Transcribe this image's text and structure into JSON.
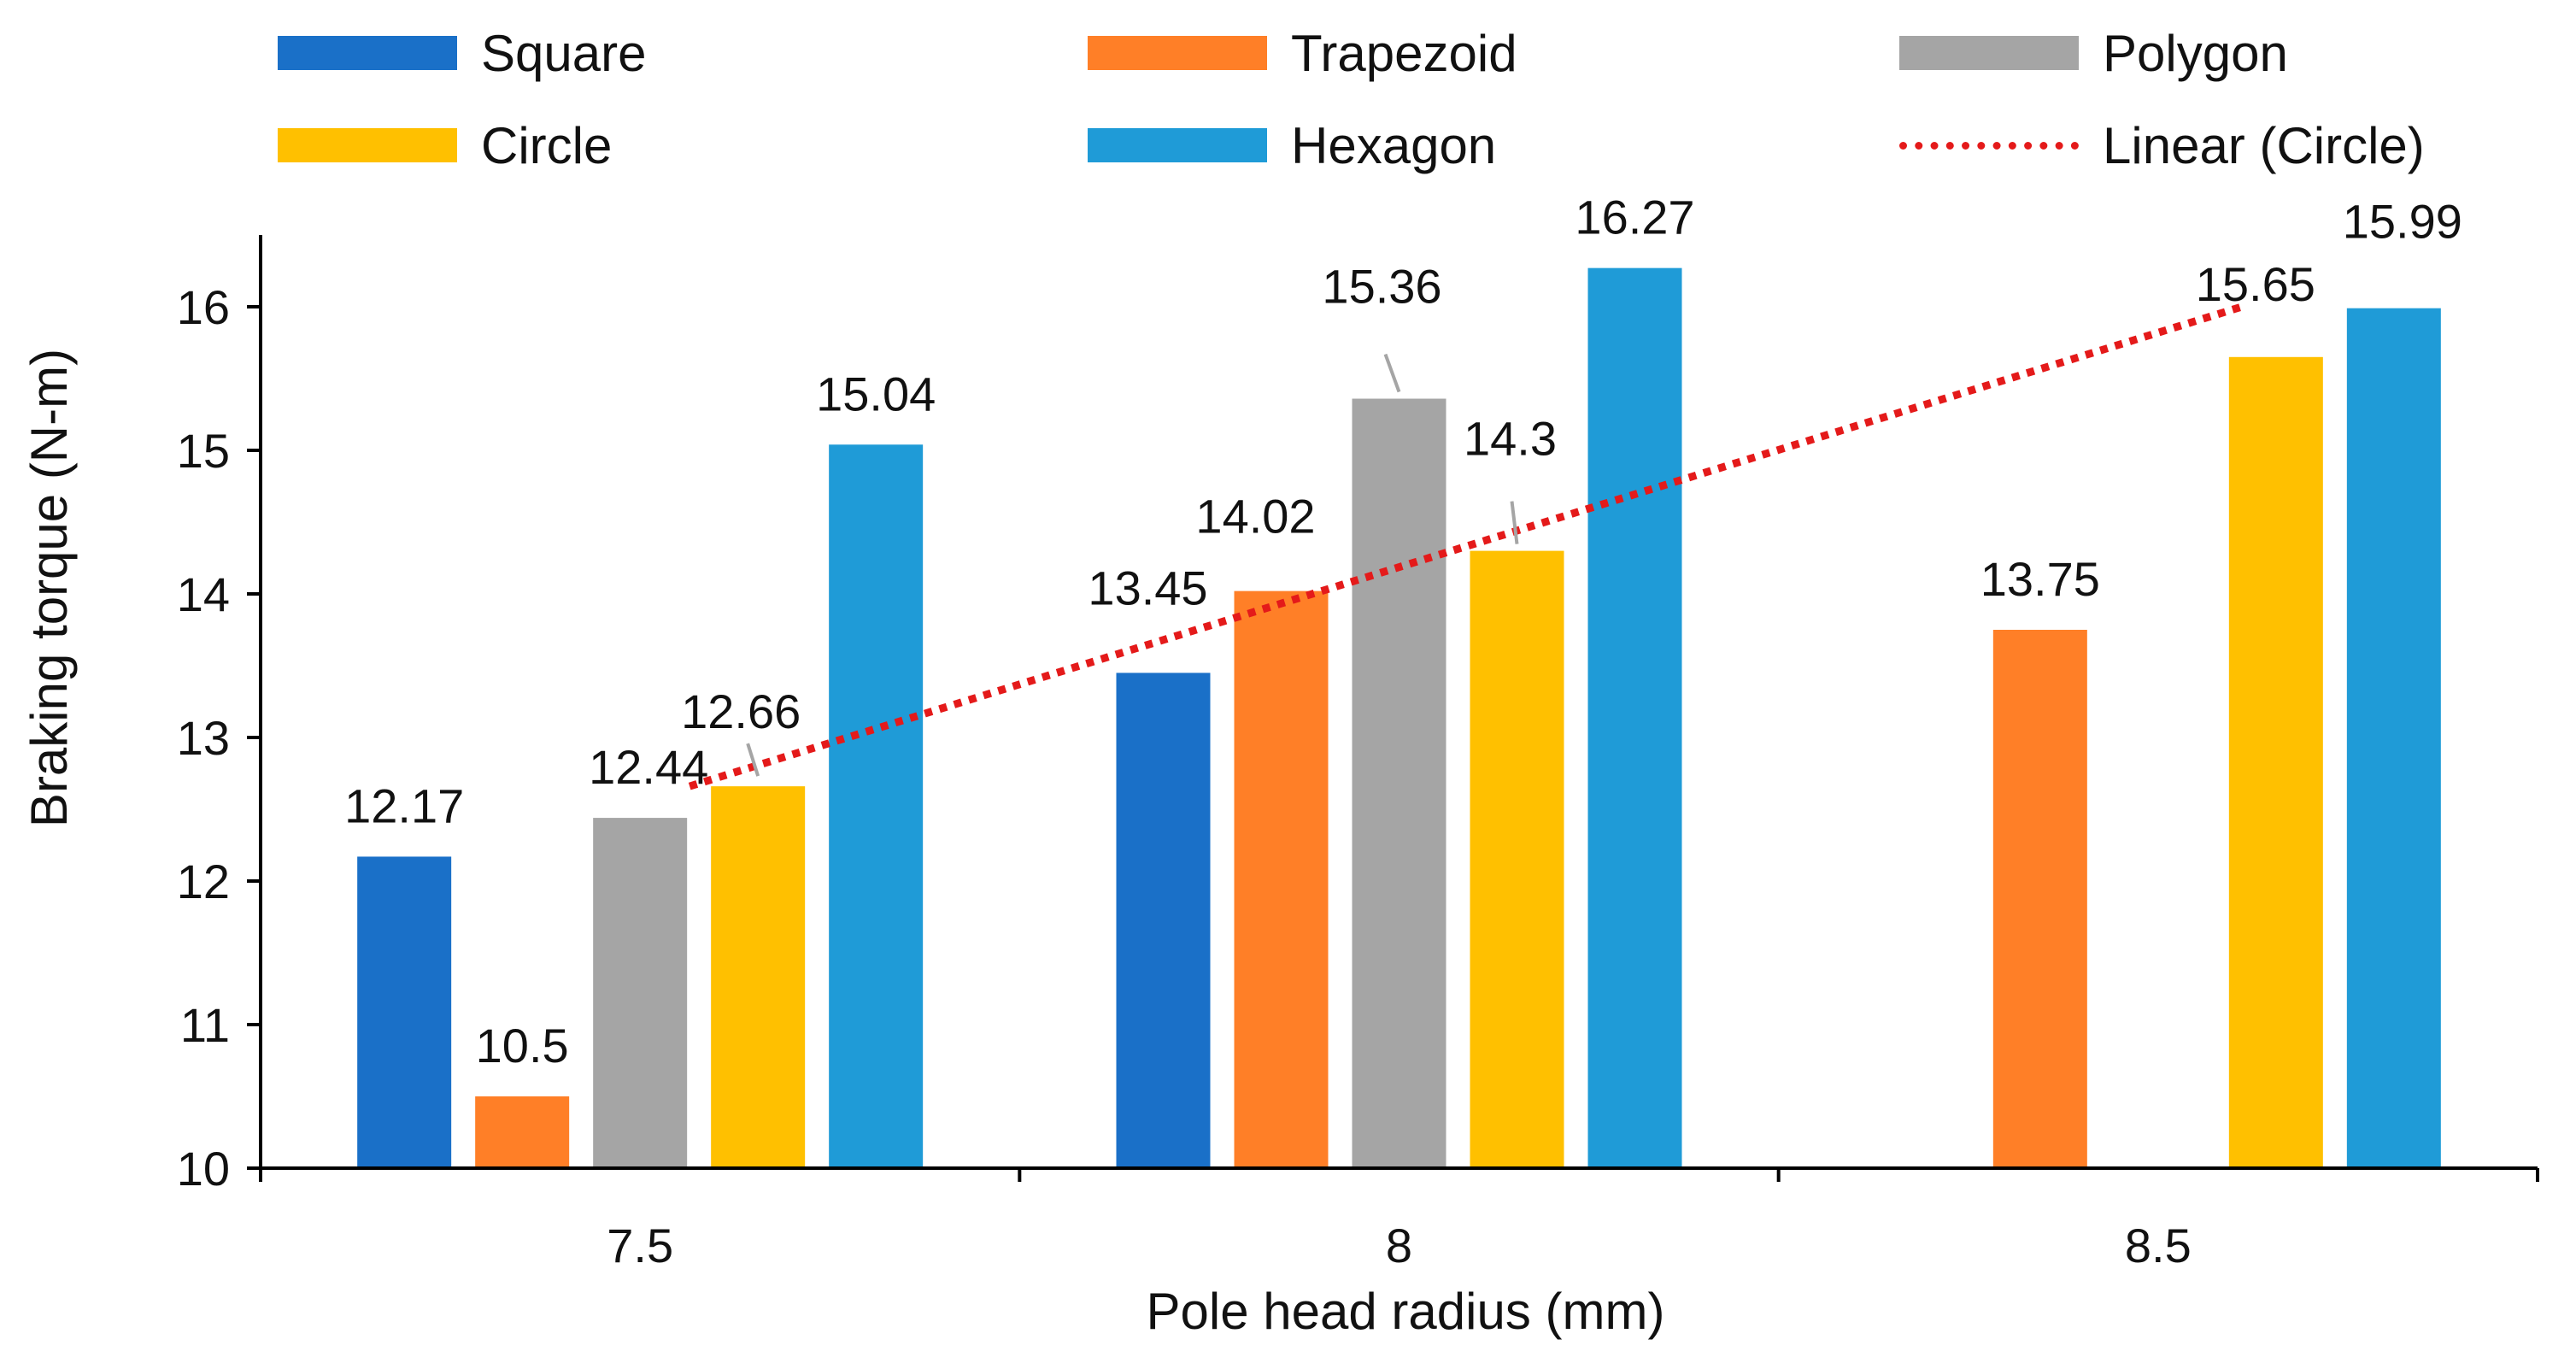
{
  "chart_data": {
    "type": "bar",
    "title": "",
    "xlabel": "Pole head radius (mm)",
    "ylabel": "Braking torque (N-m)",
    "ylim": [
      10,
      16.5
    ],
    "yticks": [
      "10",
      "11",
      "12",
      "13",
      "14",
      "15",
      "16"
    ],
    "categories": [
      "7.5",
      "8",
      "8.5"
    ],
    "grid": false,
    "legend_position": "top",
    "series": [
      {
        "name": "Square",
        "color": "#1a70c8",
        "values": [
          12.17,
          13.45,
          null
        ],
        "labels": [
          "12.17",
          "13.45",
          ""
        ]
      },
      {
        "name": "Trapezoid",
        "color": "#ff7f27",
        "values": [
          10.5,
          14.02,
          13.75
        ],
        "labels": [
          "10.5",
          "14.02",
          "13.75"
        ]
      },
      {
        "name": "Polygon",
        "color": "#a5a5a5",
        "values": [
          12.44,
          15.36,
          null
        ],
        "labels": [
          "12.44",
          "15.36",
          ""
        ]
      },
      {
        "name": "Circle",
        "color": "#ffc000",
        "values": [
          12.66,
          14.3,
          15.65
        ],
        "labels": [
          "12.66",
          "14.3",
          "15.65"
        ]
      },
      {
        "name": "Hexagon",
        "color": "#1f9bd7",
        "values": [
          15.04,
          16.27,
          15.99
        ],
        "labels": [
          "15.04",
          "16.27",
          "15.99"
        ]
      }
    ],
    "trendline": {
      "name": "Linear (Circle)",
      "series": "Circle",
      "color": "#e41a1a",
      "style": "dotted",
      "start": 12.66,
      "end": 16.0
    }
  },
  "legend": {
    "items": [
      {
        "label": "Square",
        "type": "bar",
        "color": "#1a70c8"
      },
      {
        "label": "Trapezoid",
        "type": "bar",
        "color": "#ff7f27"
      },
      {
        "label": "Polygon",
        "type": "bar",
        "color": "#a5a5a5"
      },
      {
        "label": "Circle",
        "type": "bar",
        "color": "#ffc000"
      },
      {
        "label": "Hexagon",
        "type": "bar",
        "color": "#1f9bd7"
      },
      {
        "label": "Linear (Circle)",
        "type": "line",
        "color": "#e41a1a"
      }
    ]
  }
}
